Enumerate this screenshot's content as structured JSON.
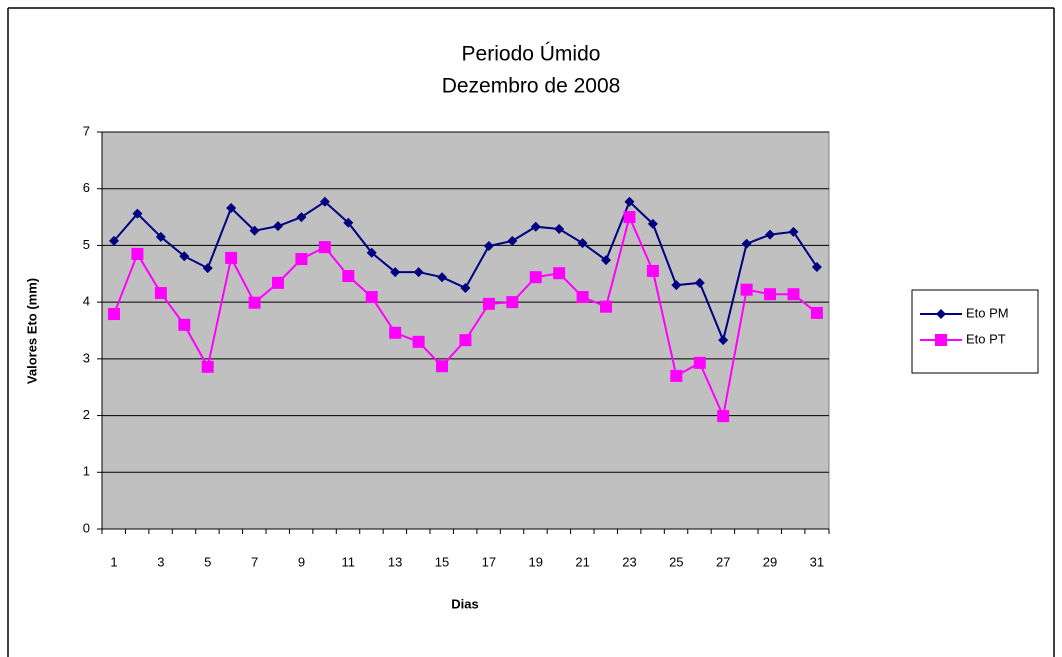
{
  "chart_data": {
    "type": "line",
    "title": "Periodo Úmido",
    "subtitle": "Dezembro de 2008",
    "x_label": "Dias",
    "y_label": "Valores Eto (mm)",
    "categories": [
      1,
      null,
      3,
      null,
      5,
      null,
      7,
      null,
      9,
      null,
      11,
      null,
      13,
      null,
      15,
      null,
      17,
      null,
      19,
      null,
      21,
      null,
      23,
      null,
      25,
      null,
      27,
      null,
      29,
      null,
      31
    ],
    "series": [
      {
        "name": "Eto PM",
        "color": "#000080",
        "marker": "diamond",
        "values": [
          5.08,
          5.56,
          5.15,
          4.81,
          4.6,
          5.66,
          5.26,
          5.34,
          5.5,
          5.77,
          5.4,
          4.87,
          4.53,
          4.53,
          4.44,
          4.25,
          4.99,
          5.08,
          5.33,
          5.29,
          5.04,
          4.74,
          5.77,
          5.38,
          4.3,
          4.34,
          3.33,
          5.03,
          5.19,
          5.24,
          4.62
        ]
      },
      {
        "name": "Eto PT",
        "color": "#ff00ff",
        "marker": "square",
        "values": [
          3.79,
          4.85,
          4.16,
          3.6,
          2.86,
          4.78,
          3.99,
          4.34,
          4.76,
          4.97,
          4.46,
          4.09,
          3.46,
          3.3,
          2.87,
          3.33,
          3.97,
          4.0,
          4.44,
          4.51,
          4.09,
          3.92,
          5.5,
          4.55,
          2.7,
          2.93,
          1.99,
          4.22,
          4.14,
          4.14,
          3.81
        ]
      }
    ],
    "ylim": [
      0,
      7
    ],
    "yticks": [
      0,
      1,
      2,
      3,
      4,
      5,
      6,
      7
    ],
    "grid": true,
    "plot_background": "#c0c0c0",
    "legend": "right"
  }
}
